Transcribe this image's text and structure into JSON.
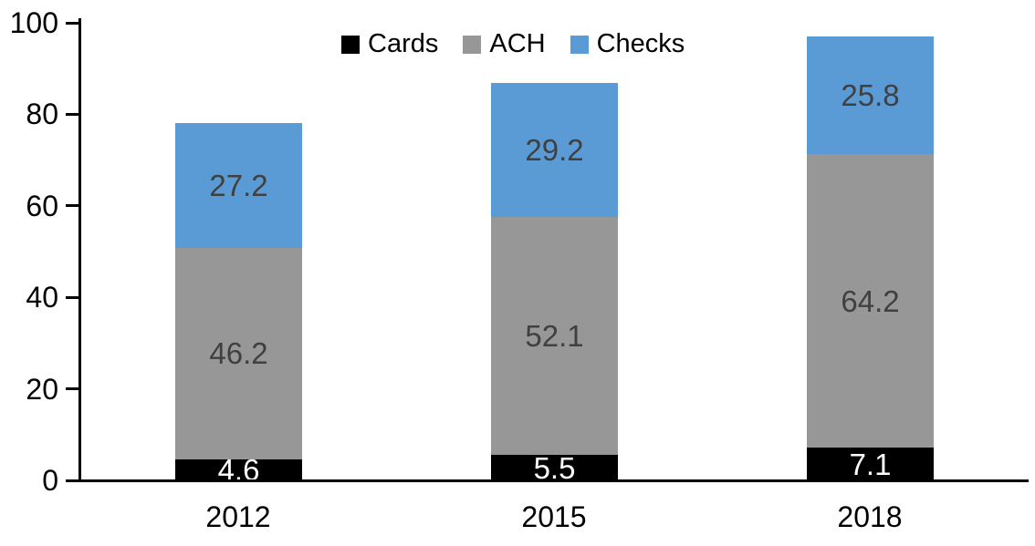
{
  "chart_data": {
    "type": "bar",
    "stacked": true,
    "title": "",
    "xlabel": "",
    "ylabel": "",
    "categories": [
      "2012",
      "2015",
      "2018"
    ],
    "series": [
      {
        "name": "Cards",
        "color": "#000000",
        "label_color": "#FFFFFF",
        "values": [
          4.6,
          5.5,
          7.1
        ]
      },
      {
        "name": "ACH",
        "color": "#979797",
        "label_color": "#404040",
        "values": [
          46.2,
          52.1,
          64.2
        ]
      },
      {
        "name": "Checks",
        "color": "#5B9BD5",
        "label_color": "#404040",
        "values": [
          27.2,
          29.2,
          25.8
        ]
      }
    ],
    "y_ticks": [
      0,
      20,
      40,
      60,
      80,
      100
    ],
    "ylim": [
      0,
      100
    ],
    "legend_position": "top-center",
    "grid": false,
    "axis_color": "#000000",
    "background": "#FFFFFF"
  }
}
